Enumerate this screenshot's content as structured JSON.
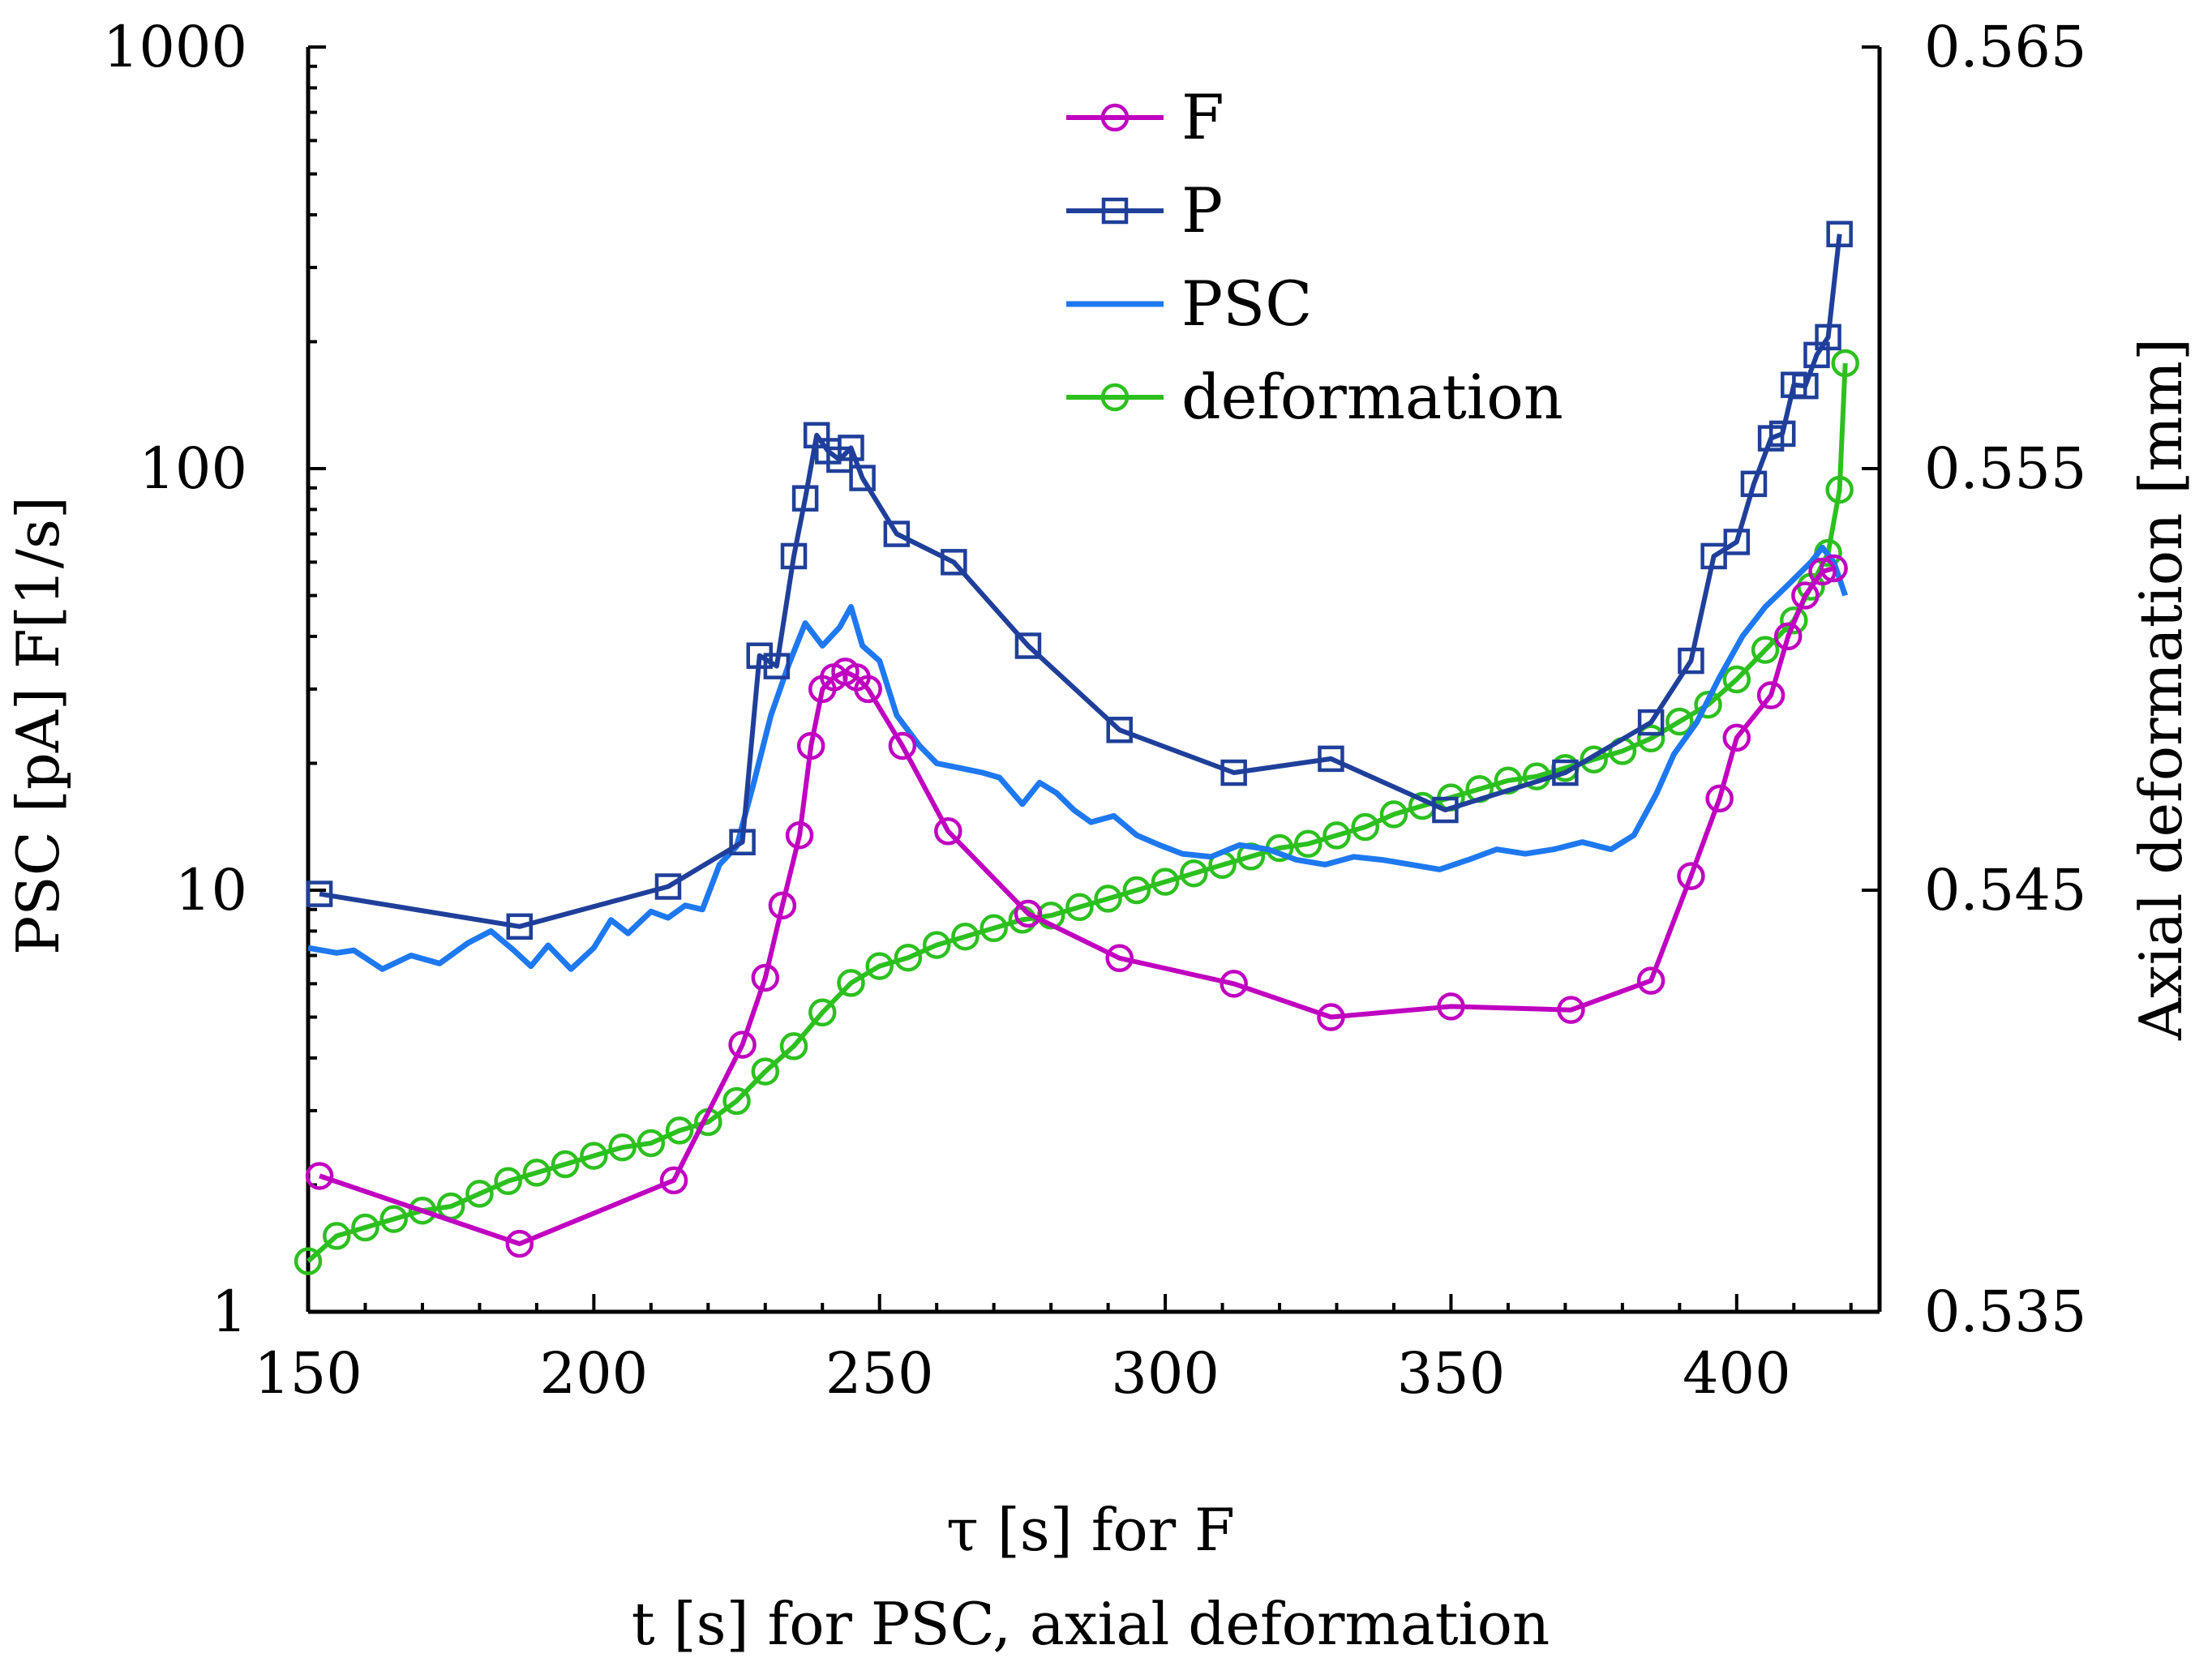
{
  "chart_data": {
    "type": "line",
    "xlabel_lines": [
      "τ [s] for F",
      "t [s] for PSC, axial deformation"
    ],
    "ylabel_left": "PSC [pA]  F[1/s]",
    "ylabel_right": "Axial deformation [mm]",
    "xlim": [
      150,
      425
    ],
    "xticks": [
      150,
      200,
      250,
      300,
      350,
      400
    ],
    "xtick_labels": [
      "150",
      "200",
      "250",
      "300",
      "350",
      "400"
    ],
    "ylim_left": [
      1,
      1000
    ],
    "yscale_left": "log",
    "yticks_left": [
      1,
      10,
      100,
      1000
    ],
    "ytick_labels_left": [
      "1",
      "10",
      "100",
      "1000"
    ],
    "ylim_right": [
      0.535,
      0.565
    ],
    "yticks_right": [
      0.535,
      0.545,
      0.555,
      0.565
    ],
    "ytick_labels_right": [
      "0.535",
      "0.545",
      "0.555",
      "0.565"
    ],
    "legend_position": "top-center",
    "grid": false,
    "series": [
      {
        "name": "F",
        "axis": "left",
        "color": "#C000C0",
        "marker": "circle",
        "x": [
          152,
          187,
          214,
          226,
          230,
          233,
          236,
          238,
          240,
          242,
          244,
          246,
          248,
          254,
          262,
          276,
          292,
          312,
          329,
          350,
          371,
          385,
          392,
          397,
          400,
          406,
          409,
          412,
          415,
          417
        ],
        "y": [
          2.1,
          1.45,
          2.05,
          4.3,
          6.2,
          9.2,
          13.5,
          22,
          30,
          32,
          33,
          32,
          30,
          22,
          13.8,
          8.8,
          6.9,
          6.0,
          5.0,
          5.3,
          5.2,
          6.1,
          10.8,
          16.5,
          23,
          29,
          40,
          50,
          57,
          58
        ]
      },
      {
        "name": "P",
        "axis": "left",
        "color": "#1F3F9A",
        "marker": "square",
        "x": [
          152,
          187,
          213,
          226,
          229,
          232,
          235,
          237,
          239,
          241,
          243,
          245,
          247,
          253,
          263,
          276,
          292,
          312,
          329,
          349,
          370,
          385,
          392,
          396,
          400,
          403,
          406,
          408,
          410,
          412,
          414,
          416,
          418
        ],
        "y": [
          9.8,
          8.2,
          10.2,
          13,
          36,
          34,
          62,
          85,
          120,
          110,
          105,
          112,
          95,
          70,
          60,
          38,
          24,
          19,
          20.5,
          15.5,
          19,
          25,
          35,
          62,
          67,
          92,
          118,
          121,
          158,
          157,
          186,
          205,
          360
        ]
      },
      {
        "name": "PSC",
        "axis": "left",
        "color": "#1E78F0",
        "marker": "none",
        "x": [
          150,
          155,
          158,
          163,
          168,
          173,
          178,
          182,
          186,
          189,
          192,
          196,
          200,
          203,
          206,
          210,
          213,
          216,
          219,
          222,
          225,
          228,
          231,
          234,
          237,
          240,
          243,
          245,
          247,
          250,
          253,
          257,
          260,
          264,
          268,
          271,
          275,
          278,
          281,
          284,
          287,
          291,
          295,
          299,
          303,
          308,
          313,
          318,
          323,
          328,
          333,
          338,
          343,
          348,
          353,
          358,
          363,
          368,
          373,
          378,
          382,
          386,
          389,
          393,
          397,
          401,
          405,
          409,
          413,
          415,
          417,
          419
        ],
        "y": [
          7.3,
          7.1,
          7.2,
          6.5,
          7.0,
          6.7,
          7.5,
          8.0,
          7.2,
          6.6,
          7.4,
          6.5,
          7.3,
          8.5,
          7.9,
          8.9,
          8.6,
          9.2,
          9.0,
          11.5,
          12.7,
          18,
          26,
          34,
          43,
          38,
          42,
          47,
          38,
          35,
          26,
          22,
          20,
          19.5,
          19,
          18.5,
          16,
          18,
          17,
          15.5,
          14.5,
          15,
          13.5,
          12.8,
          12.2,
          12.0,
          12.8,
          12.5,
          11.8,
          11.5,
          12.0,
          11.8,
          11.5,
          11.2,
          11.8,
          12.5,
          12.2,
          12.5,
          13.0,
          12.5,
          13.5,
          17,
          21,
          25,
          32,
          40,
          47,
          53,
          60,
          65,
          60,
          50
        ]
      },
      {
        "name": "deformation",
        "axis": "right",
        "color": "#2CC01F",
        "marker": "circle",
        "x": [
          150,
          155,
          160,
          165,
          170,
          175,
          180,
          185,
          190,
          195,
          200,
          205,
          210,
          215,
          220,
          225,
          230,
          235,
          240,
          245,
          250,
          255,
          260,
          265,
          270,
          275,
          280,
          285,
          290,
          295,
          300,
          305,
          310,
          315,
          320,
          325,
          330,
          335,
          340,
          345,
          350,
          355,
          360,
          365,
          370,
          375,
          380,
          385,
          390,
          395,
          400,
          405,
          410,
          413,
          416,
          418,
          419
        ],
        "y": [
          0.5362,
          0.5368,
          0.537,
          0.5372,
          0.5374,
          0.5375,
          0.5378,
          0.5381,
          0.5383,
          0.5385,
          0.5387,
          0.5389,
          0.539,
          0.5393,
          0.5395,
          0.54,
          0.5407,
          0.5413,
          0.5421,
          0.5428,
          0.5432,
          0.5434,
          0.5437,
          0.5439,
          0.5441,
          0.5443,
          0.5444,
          0.5446,
          0.5448,
          0.545,
          0.5452,
          0.5454,
          0.5456,
          0.5458,
          0.546,
          0.5461,
          0.5463,
          0.5465,
          0.5468,
          0.547,
          0.5472,
          0.5474,
          0.5476,
          0.5477,
          0.5479,
          0.5481,
          0.5483,
          0.5486,
          0.549,
          0.5494,
          0.55,
          0.5507,
          0.5514,
          0.5522,
          0.553,
          0.5545,
          0.5575
        ]
      }
    ]
  }
}
